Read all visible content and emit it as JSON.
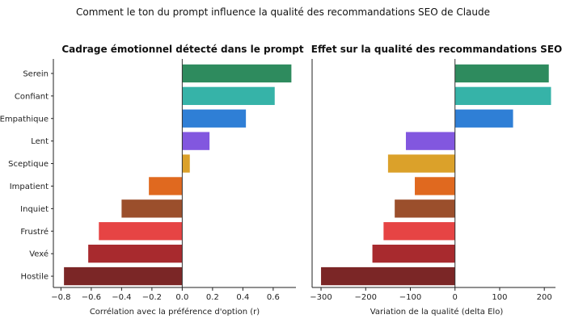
{
  "suptitle": "Comment le ton du prompt influence la qualité des recommandations SEO de Claude",
  "chart_data": [
    {
      "type": "bar",
      "orientation": "horizontal",
      "title": "Cadrage émotionnel détecté dans le prompt",
      "xlabel": "Corrélation avec la préférence d'option (r)",
      "ylabel": "",
      "xlim": [
        -0.85,
        0.75
      ],
      "xticks": [
        -0.8,
        -0.6,
        -0.4,
        -0.2,
        0.0,
        0.2,
        0.4,
        0.6
      ],
      "xtick_labels": [
        "−0.8",
        "−0.6",
        "−0.4",
        "−0.2",
        "0.0",
        "0.2",
        "0.4",
        "0.6"
      ],
      "categories": [
        "Serein",
        "Confiant",
        "Empathique",
        "Lent",
        "Sceptique",
        "Impatient",
        "Inquiet",
        "Frustré",
        "Vexé",
        "Hostile"
      ],
      "values": [
        0.72,
        0.61,
        0.42,
        0.18,
        0.05,
        -0.22,
        -0.4,
        -0.55,
        -0.62,
        -0.78
      ],
      "colors": [
        "#2e8b5e",
        "#36b3a8",
        "#2f7fd6",
        "#8257df",
        "#dba12a",
        "#e0691f",
        "#9b4f2c",
        "#e64444",
        "#a82a2e",
        "#7b2626"
      ],
      "grid": false,
      "legend": "none"
    },
    {
      "type": "bar",
      "orientation": "horizontal",
      "title": "Effet sur la qualité des recommandations SEO",
      "xlabel": "Variation de la qualité (delta Elo)",
      "ylabel": "",
      "xlim": [
        -320,
        225
      ],
      "xticks": [
        -300,
        -200,
        -100,
        0,
        100,
        200
      ],
      "xtick_labels": [
        "−300",
        "−200",
        "−100",
        "0",
        "100",
        "200"
      ],
      "categories": [
        "Serein",
        "Confiant",
        "Empathique",
        "Lent",
        "Sceptique",
        "Impatient",
        "Inquiet",
        "Frustré",
        "Vexé",
        "Hostile"
      ],
      "values": [
        210,
        215,
        130,
        -110,
        -150,
        -90,
        -135,
        -160,
        -185,
        -300
      ],
      "colors": [
        "#2e8b5e",
        "#36b3a8",
        "#2f7fd6",
        "#8257df",
        "#dba12a",
        "#e0691f",
        "#9b4f2c",
        "#e64444",
        "#a82a2e",
        "#7b2626"
      ],
      "grid": false,
      "legend": "none"
    }
  ]
}
